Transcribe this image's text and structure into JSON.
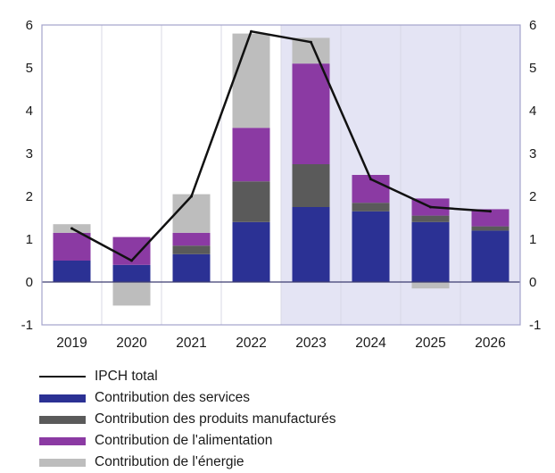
{
  "chart_data": {
    "type": "bar",
    "stacked": true,
    "categories": [
      "2019",
      "2020",
      "2021",
      "2022",
      "2023",
      "2024",
      "2025",
      "2026"
    ],
    "projection_shading_from": "2023",
    "ylim": [
      -1,
      6
    ],
    "yticks": [
      "-1",
      "0",
      "1",
      "2",
      "3",
      "4",
      "5",
      "6"
    ],
    "right_axis_duplicate": true,
    "grid": "vertical lines between categories",
    "legend_position": "bottom",
    "series": [
      {
        "name": "Contribution des services",
        "kind": "bar",
        "color": "#2b3194",
        "values": [
          0.5,
          0.4,
          0.65,
          1.4,
          1.75,
          1.65,
          1.4,
          1.2
        ]
      },
      {
        "name": "Contribution des produits manufacturés",
        "kind": "bar",
        "color": "#5a5a5a",
        "values": [
          0.0,
          0.0,
          0.2,
          0.95,
          1.0,
          0.2,
          0.15,
          0.1
        ]
      },
      {
        "name": "Contribution de l'alimentation",
        "kind": "bar",
        "color": "#8b3aa3",
        "values": [
          0.65,
          0.65,
          0.3,
          1.25,
          2.35,
          0.65,
          0.4,
          0.4
        ]
      },
      {
        "name": "Contribution de l'énergie",
        "kind": "bar",
        "color": "#bdbdbd",
        "values": [
          0.2,
          -0.55,
          0.9,
          2.2,
          0.6,
          0.0,
          -0.15,
          0.0
        ]
      },
      {
        "name": "IPCH total",
        "kind": "line",
        "color": "#111111",
        "values": [
          1.25,
          0.5,
          2.0,
          5.85,
          5.6,
          2.4,
          1.75,
          1.65
        ]
      }
    ],
    "legend_order": [
      "IPCH total",
      "Contribution des services",
      "Contribution des produits manufacturés",
      "Contribution de l'alimentation",
      "Contribution de l'énergie"
    ],
    "colors": {
      "projection_band": "#e4e4f4",
      "plot_border": "#a3a3cc"
    }
  }
}
